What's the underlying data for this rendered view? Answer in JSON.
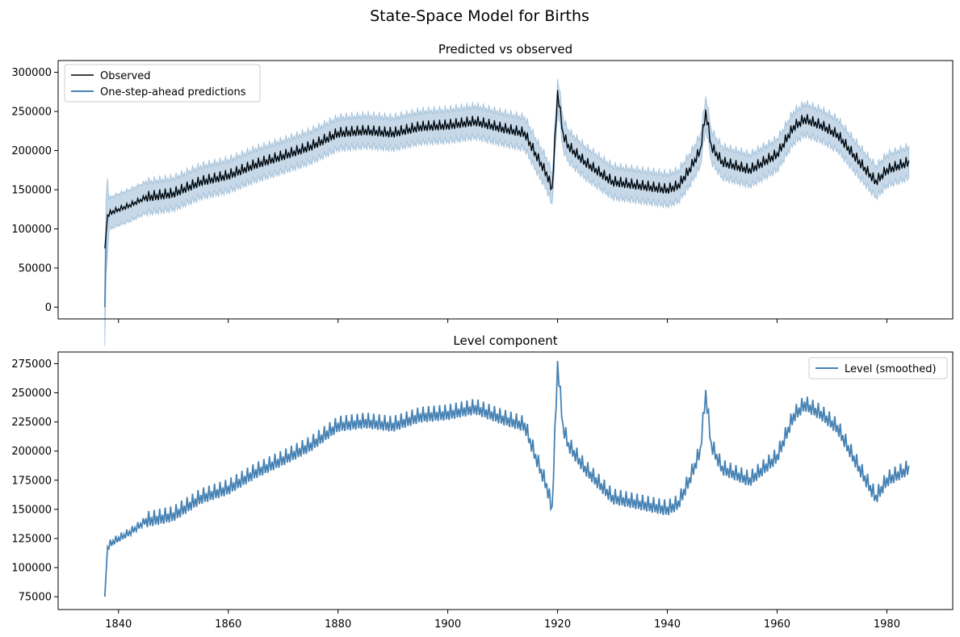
{
  "figure": {
    "title": "State-Space Model for Births"
  },
  "chart_data": [
    {
      "type": "line",
      "title": "Predicted vs observed",
      "xlabel": "",
      "ylabel": "",
      "xlim": [
        1829,
        1992
      ],
      "ylim": [
        -15000,
        315000
      ],
      "yticks": [
        0,
        50000,
        100000,
        150000,
        200000,
        250000,
        300000
      ],
      "xticks": [
        1840,
        1860,
        1880,
        1900,
        1920,
        1940,
        1960,
        1980
      ],
      "x_tick_labels_visible": false,
      "legend": {
        "position": "top-left",
        "entries": [
          "Observed",
          "One-step-ahead predictions"
        ]
      },
      "series": [
        {
          "name": "Observed",
          "color": "#000000",
          "role": "observed"
        },
        {
          "name": "One-step-ahead predictions",
          "color": "#4682b4",
          "role": "prediction"
        }
      ],
      "confidence_band": {
        "color": "#4682b4",
        "half_width": 20000
      },
      "x_start": 1837.5,
      "x_end": 1984.0,
      "first_prediction": 0
    },
    {
      "type": "line",
      "title": "Level component",
      "xlabel": "",
      "ylabel": "",
      "xlim": [
        1829,
        1992
      ],
      "ylim": [
        64000,
        285000
      ],
      "yticks": [
        75000,
        100000,
        125000,
        150000,
        175000,
        200000,
        225000,
        250000,
        275000
      ],
      "xticks": [
        1840,
        1860,
        1880,
        1900,
        1920,
        1940,
        1960,
        1980
      ],
      "legend": {
        "position": "top-right",
        "entries": [
          "Level (smoothed)"
        ]
      },
      "series": [
        {
          "name": "Level (smoothed)",
          "color": "#4682b4",
          "role": "level"
        }
      ],
      "x_start": 1837.5,
      "x_end": 1984.0
    }
  ],
  "births_level_anchors": {
    "description_years": [
      1837.5,
      1838,
      1839,
      1842,
      1845,
      1850,
      1855,
      1860,
      1865,
      1870,
      1875,
      1880,
      1885,
      1890,
      1895,
      1900,
      1905,
      1910,
      1914,
      1916,
      1918,
      1919,
      1920,
      1921,
      1922,
      1925,
      1930,
      1935,
      1940,
      1942,
      1944,
      1946,
      1947,
      1948,
      1950,
      1955,
      1960,
      1963,
      1965,
      1968,
      1971,
      1975,
      1978,
      1980,
      1984
    ],
    "values": [
      75000,
      118000,
      122000,
      130000,
      140000,
      145000,
      160000,
      168000,
      182000,
      193000,
      205000,
      222000,
      225000,
      222000,
      230000,
      232000,
      237000,
      228000,
      222000,
      195000,
      170000,
      150000,
      275000,
      220000,
      205000,
      185000,
      160000,
      155000,
      150000,
      155000,
      175000,
      200000,
      250000,
      205000,
      185000,
      175000,
      195000,
      230000,
      240000,
      232000,
      220000,
      185000,
      160000,
      175000,
      185000
    ]
  }
}
